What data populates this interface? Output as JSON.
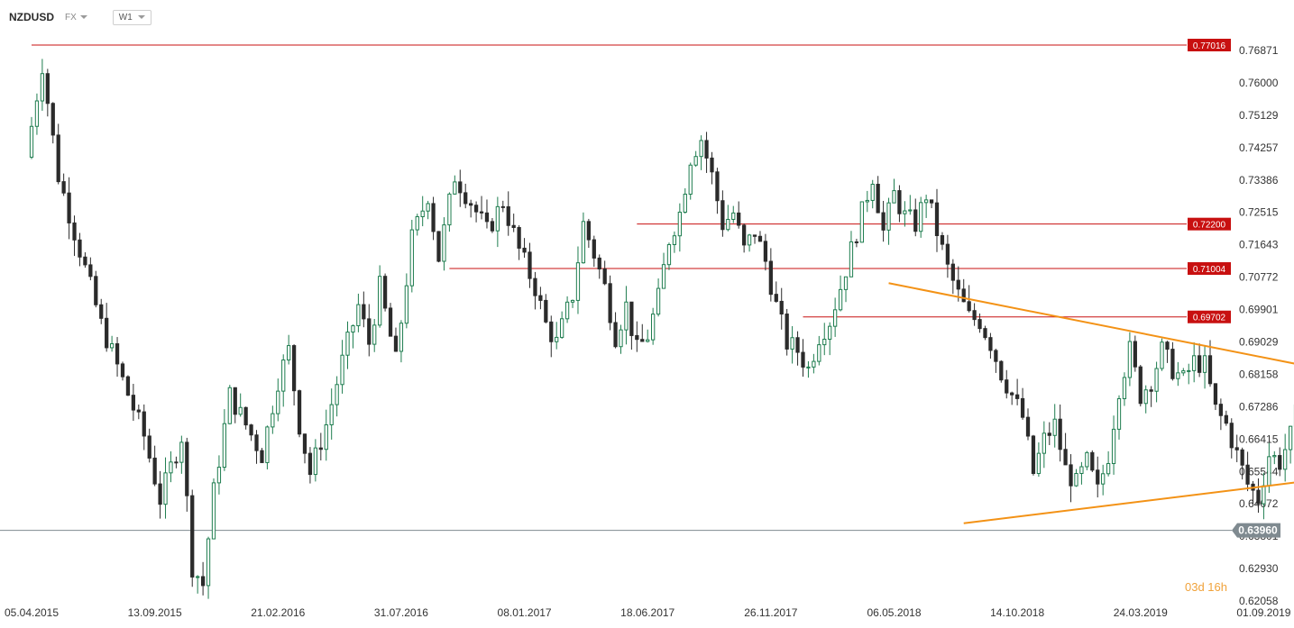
{
  "toolbar": {
    "symbol": "NZDUSD",
    "market": "FX",
    "timeframe": "W1"
  },
  "timer": "03d 16h",
  "colors": {
    "bull": "#1e7d4f",
    "bear": "#2b2b2b",
    "level": "#c81010",
    "trend": "#f39216",
    "current": "#7f8a90"
  },
  "chart_data": {
    "type": "candlestick",
    "ylim": [
      0.62058,
      0.77378
    ],
    "yticks": [
      "0.76871",
      "0.76000",
      "0.75129",
      "0.74257",
      "0.73386",
      "0.72515",
      "0.71643",
      "0.70772",
      "0.69901",
      "0.69029",
      "0.68158",
      "0.67286",
      "0.66415",
      "0.65544",
      "0.64672",
      "0.63801",
      "0.62930",
      "0.62058"
    ],
    "xticks": [
      "05.04.2015",
      "13.09.2015",
      "21.02.2016",
      "31.07.2016",
      "08.01.2017",
      "18.06.2017",
      "26.11.2017",
      "06.05.2018",
      "14.10.2018",
      "24.03.2019",
      "01.09.2019"
    ],
    "x_start": "05.04.2015",
    "x_end": "01.09.2019",
    "levels": [
      {
        "value": 0.77016,
        "label": "0.77016",
        "from": "05.04.2015"
      },
      {
        "value": 0.722,
        "label": "0.72200",
        "from": "04.06.2017"
      },
      {
        "value": 0.71004,
        "label": "0.71004",
        "from": "02.10.2016"
      },
      {
        "value": 0.69702,
        "label": "0.69702",
        "from": "07.01.2018"
      }
    ],
    "current_price": {
      "value": 0.6396,
      "label": "0.63960"
    },
    "trendlines": [
      {
        "name": "upper",
        "from": [
          "29.04.2018",
          0.7061
        ],
        "to": [
          "20.10.2019",
          0.6841
        ]
      },
      {
        "name": "lower",
        "from": [
          "05.08.2018",
          0.6415
        ],
        "to": [
          "13.10.2019",
          0.6525
        ]
      }
    ],
    "candles": []
  }
}
